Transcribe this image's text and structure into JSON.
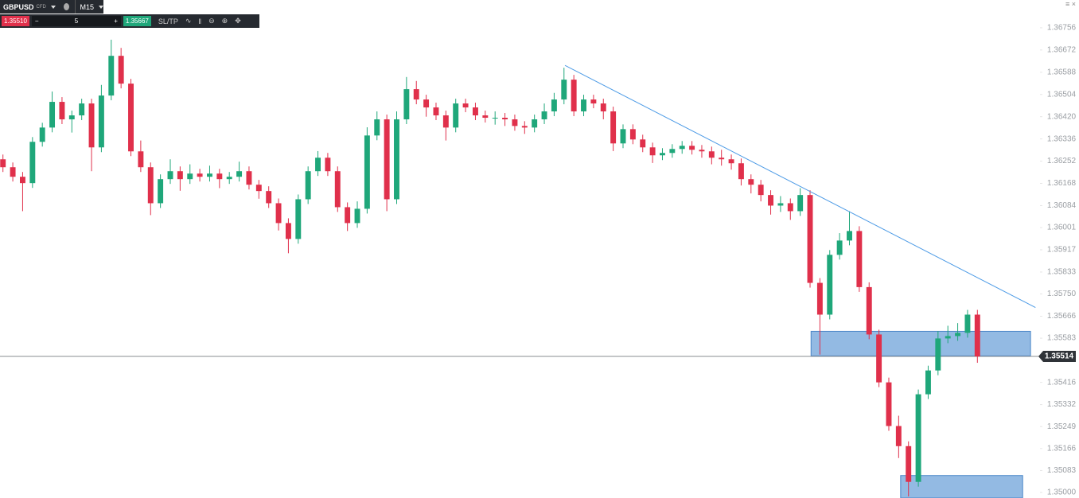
{
  "toolbar": {
    "symbol": "GBPUSD",
    "instrument_type": "CFD",
    "timeframe": "M15",
    "sell_price": "1.35510",
    "quantity": "5",
    "buy_price": "1.35667",
    "sltp": "SL/TP"
  },
  "chart_data": {
    "type": "candlestick",
    "up_color": "#1fa77a",
    "down_color": "#e0304b",
    "xlim": [
      -0.3,
      105.2
    ],
    "ylim": [
      1.34979,
      1.36861
    ],
    "yticks": [
      1.36756,
      1.36672,
      1.36588,
      1.36504,
      {
        "value": 1.3642,
        "label": "1.36420"
      },
      1.36336,
      1.36252,
      1.36168,
      1.36084,
      1.36001,
      1.35917,
      1.35833,
      {
        "value": 1.3575,
        "label": "1.35750"
      },
      1.35666,
      1.35583,
      1.35416,
      1.35332,
      1.35249,
      1.35166,
      1.35083,
      {
        "value": 1.35,
        "label": "1.35000"
      }
    ],
    "price_line": 1.35514,
    "trendline": {
      "color": "#4d9be6",
      "x": [
        57.1,
        104.9
      ],
      "y": [
        1.36614,
        1.35699
      ]
    },
    "zones": [
      {
        "color": "#6fa3d9",
        "x": [
          82.1,
          104.4
        ],
        "y": [
          1.35516,
          1.35609
        ]
      },
      {
        "color": "#6fa3d9",
        "x": [
          91.2,
          103.6
        ],
        "y": [
          1.34979,
          1.35064
        ]
      }
    ],
    "ohlc": [
      [
        1.36259,
        1.36277,
        1.36211,
        1.36229
      ],
      [
        1.36229,
        1.36247,
        1.36175,
        1.36193
      ],
      [
        1.36193,
        1.36211,
        1.36063,
        1.36169
      ],
      [
        1.36169,
        1.36343,
        1.36151,
        1.36325
      ],
      [
        1.36325,
        1.36397,
        1.36307,
        1.36379
      ],
      [
        1.36379,
        1.36515,
        1.36361,
        1.36476
      ],
      [
        1.36476,
        1.36494,
        1.36392,
        1.3641
      ],
      [
        1.3641,
        1.36443,
        1.3636,
        1.36425
      ],
      [
        1.36425,
        1.36488,
        1.36407,
        1.3647
      ],
      [
        1.3647,
        1.36488,
        1.36214,
        1.36304
      ],
      [
        1.36304,
        1.3654,
        1.36286,
        1.365
      ],
      [
        1.365,
        1.36711,
        1.36482,
        1.3665
      ],
      [
        1.3665,
        1.3668,
        1.36527,
        1.36545
      ],
      [
        1.36545,
        1.36563,
        1.36271,
        1.36289
      ],
      [
        1.36289,
        1.3633,
        1.36211,
        1.36229
      ],
      [
        1.36229,
        1.36247,
        1.36048,
        1.36093
      ],
      [
        1.36093,
        1.36202,
        1.36075,
        1.36184
      ],
      [
        1.36184,
        1.36259,
        1.36166,
        1.36214
      ],
      [
        1.36214,
        1.36232,
        1.3614,
        1.36184
      ],
      [
        1.36184,
        1.3624,
        1.36166,
        1.36205
      ],
      [
        1.36205,
        1.36223,
        1.36175,
        1.36193
      ],
      [
        1.36193,
        1.36235,
        1.36175,
        1.36205
      ],
      [
        1.36205,
        1.36223,
        1.3615,
        1.36184
      ],
      [
        1.36184,
        1.36211,
        1.36166,
        1.36193
      ],
      [
        1.36193,
        1.3625,
        1.36175,
        1.36214
      ],
      [
        1.36214,
        1.36232,
        1.36145,
        1.36163
      ],
      [
        1.36163,
        1.36181,
        1.3611,
        1.36139
      ],
      [
        1.36139,
        1.36157,
        1.36075,
        1.36093
      ],
      [
        1.36093,
        1.36111,
        1.3599,
        1.36018
      ],
      [
        1.36018,
        1.36036,
        1.35904,
        1.35958
      ],
      [
        1.35958,
        1.36126,
        1.3594,
        1.36108
      ],
      [
        1.36108,
        1.36232,
        1.3609,
        1.36214
      ],
      [
        1.36214,
        1.3629,
        1.36196,
        1.36265
      ],
      [
        1.36265,
        1.36283,
        1.36196,
        1.36214
      ],
      [
        1.36214,
        1.36232,
        1.3606,
        1.36078
      ],
      [
        1.36078,
        1.36096,
        1.35988,
        1.36018
      ],
      [
        1.36018,
        1.361,
        1.36,
        1.36072
      ],
      [
        1.36072,
        1.3638,
        1.36054,
        1.36349
      ],
      [
        1.36349,
        1.3644,
        1.36331,
        1.3641
      ],
      [
        1.3641,
        1.36428,
        1.36063,
        1.36108
      ],
      [
        1.36108,
        1.3644,
        1.3609,
        1.3641
      ],
      [
        1.3641,
        1.3657,
        1.36392,
        1.36524
      ],
      [
        1.36524,
        1.36555,
        1.36467,
        1.36485
      ],
      [
        1.36485,
        1.36503,
        1.3642,
        1.36455
      ],
      [
        1.36455,
        1.36473,
        1.36407,
        1.36425
      ],
      [
        1.36425,
        1.36443,
        1.3633,
        1.36379
      ],
      [
        1.36379,
        1.36488,
        1.36361,
        1.3647
      ],
      [
        1.3647,
        1.36488,
        1.36437,
        1.36455
      ],
      [
        1.36455,
        1.36473,
        1.36407,
        1.36425
      ],
      [
        1.36425,
        1.36443,
        1.36398,
        1.36416
      ],
      [
        1.36416,
        1.3644,
        1.3639,
        1.36416
      ],
      [
        1.36416,
        1.36434,
        1.36385,
        1.3641
      ],
      [
        1.3641,
        1.36428,
        1.36367,
        1.36385
      ],
      [
        1.36385,
        1.36403,
        1.36355,
        1.36379
      ],
      [
        1.36379,
        1.36428,
        1.36361,
        1.3641
      ],
      [
        1.3641,
        1.3647,
        1.36392,
        1.3644
      ],
      [
        1.3644,
        1.3651,
        1.36422,
        1.36485
      ],
      [
        1.36485,
        1.36605,
        1.36467,
        1.3656
      ],
      [
        1.3656,
        1.36578,
        1.36422,
        1.3644
      ],
      [
        1.3644,
        1.36503,
        1.36422,
        1.36485
      ],
      [
        1.36485,
        1.36503,
        1.36452,
        1.3647
      ],
      [
        1.3647,
        1.36488,
        1.3641,
        1.3644
      ],
      [
        1.3644,
        1.36458,
        1.3629,
        1.36319
      ],
      [
        1.36319,
        1.36391,
        1.36301,
        1.36373
      ],
      [
        1.36373,
        1.36391,
        1.36316,
        1.36334
      ],
      [
        1.36334,
        1.36352,
        1.36286,
        1.36304
      ],
      [
        1.36304,
        1.36322,
        1.36245,
        1.36274
      ],
      [
        1.36274,
        1.36301,
        1.36256,
        1.36283
      ],
      [
        1.36283,
        1.36316,
        1.36265,
        1.36298
      ],
      [
        1.36298,
        1.36328,
        1.3628,
        1.3631
      ],
      [
        1.3631,
        1.36328,
        1.36277,
        1.36295
      ],
      [
        1.36295,
        1.36313,
        1.36265,
        1.36289
      ],
      [
        1.36289,
        1.36307,
        1.3624,
        1.36265
      ],
      [
        1.36265,
        1.36295,
        1.36235,
        1.36259
      ],
      [
        1.36259,
        1.36277,
        1.3622,
        1.36244
      ],
      [
        1.36244,
        1.36262,
        1.3616,
        1.36184
      ],
      [
        1.36184,
        1.36202,
        1.3613,
        1.36163
      ],
      [
        1.36163,
        1.36181,
        1.361,
        1.36124
      ],
      [
        1.36124,
        1.36142,
        1.3605,
        1.36084
      ],
      [
        1.36084,
        1.3612,
        1.3606,
        1.36093
      ],
      [
        1.36093,
        1.36111,
        1.3603,
        1.36063
      ],
      [
        1.36063,
        1.3615,
        1.36045,
        1.36124
      ],
      [
        1.36124,
        1.36142,
        1.35774,
        1.35792
      ],
      [
        1.35792,
        1.3581,
        1.35521,
        1.35672
      ],
      [
        1.35672,
        1.35916,
        1.35654,
        1.35898
      ],
      [
        1.35898,
        1.3598,
        1.3588,
        1.35952
      ],
      [
        1.35952,
        1.36063,
        1.35934,
        1.35988
      ],
      [
        1.35988,
        1.36006,
        1.35758,
        1.35776
      ],
      [
        1.35776,
        1.35794,
        1.35579,
        1.35597
      ],
      [
        1.35597,
        1.35615,
        1.35398,
        1.35416
      ],
      [
        1.35416,
        1.35434,
        1.35233,
        1.35251
      ],
      [
        1.35251,
        1.3529,
        1.3513,
        1.35175
      ],
      [
        1.35175,
        1.35193,
        1.34985,
        1.3504
      ],
      [
        1.3504,
        1.35389,
        1.35022,
        1.35371
      ],
      [
        1.35371,
        1.35479,
        1.35353,
        1.35461
      ],
      [
        1.35461,
        1.3561,
        1.35443,
        1.35582
      ],
      [
        1.35582,
        1.3563,
        1.35564,
        1.35591
      ],
      [
        1.35591,
        1.3564,
        1.35573,
        1.35603
      ],
      [
        1.35603,
        1.3569,
        1.35585,
        1.35672
      ],
      [
        1.35672,
        1.3569,
        1.3549,
        1.35514
      ]
    ]
  }
}
